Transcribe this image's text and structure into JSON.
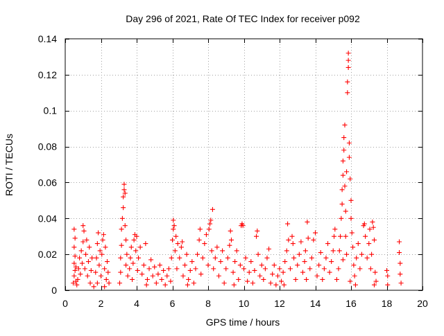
{
  "chart_data": {
    "type": "scatter",
    "title": "Day 296 of 2021, Rate Of TEC Index for receiver p092",
    "xlabel": "GPS time / hours",
    "ylabel": "ROTI / TECUs",
    "xlim": [
      0,
      20
    ],
    "ylim": [
      0,
      0.14
    ],
    "xticks": [
      0,
      2,
      4,
      6,
      8,
      10,
      12,
      14,
      16,
      18,
      20
    ],
    "yticks": [
      0,
      0.02,
      0.04,
      0.06,
      0.08,
      0.1,
      0.12,
      0.14
    ],
    "xtick_labels": [
      "0",
      "2",
      "4",
      "6",
      "8",
      "10",
      "12",
      "14",
      "16",
      "18",
      "20"
    ],
    "ytick_labels": [
      "0",
      "0.02",
      "0.04",
      "0.06",
      "0.08",
      "0.1",
      "0.12",
      "0.14"
    ],
    "grid": true,
    "marker": "+",
    "color": "#ff0000",
    "series": [
      {
        "name": "ROTI",
        "points": [
          [
            0.45,
            0.004
          ],
          [
            0.5,
            0.008
          ],
          [
            0.5,
            0.015
          ],
          [
            0.55,
            0.011
          ],
          [
            0.55,
            0.019
          ],
          [
            0.6,
            0.005
          ],
          [
            0.6,
            0.013
          ],
          [
            0.5,
            0.024
          ],
          [
            0.5,
            0.034
          ],
          [
            0.55,
            0.029
          ],
          [
            0.7,
            0.006
          ],
          [
            0.75,
            0.012
          ],
          [
            0.8,
            0.018
          ],
          [
            0.85,
            0.009
          ],
          [
            0.9,
            0.022
          ],
          [
            0.95,
            0.015
          ],
          [
            1.0,
            0.027
          ],
          [
            1.05,
            0.033
          ],
          [
            1.0,
            0.036
          ],
          [
            1.1,
            0.012
          ],
          [
            1.15,
            0.02
          ],
          [
            1.2,
            0.028
          ],
          [
            1.25,
            0.008
          ],
          [
            1.3,
            0.016
          ],
          [
            1.35,
            0.024
          ],
          [
            1.4,
            0.004
          ],
          [
            1.45,
            0.011
          ],
          [
            1.5,
            0.018
          ],
          [
            0.65,
            0.003
          ],
          [
            1.6,
            0.002
          ],
          [
            1.7,
            0.01
          ],
          [
            1.75,
            0.018
          ],
          [
            1.8,
            0.026
          ],
          [
            1.85,
            0.032
          ],
          [
            1.9,
            0.014
          ],
          [
            1.95,
            0.022
          ],
          [
            2.0,
            0.008
          ],
          [
            2.05,
            0.02
          ],
          [
            2.1,
            0.028
          ],
          [
            2.15,
            0.031
          ],
          [
            2.2,
            0.012
          ],
          [
            2.25,
            0.024
          ],
          [
            2.3,
            0.006
          ],
          [
            2.35,
            0.016
          ],
          [
            2.4,
            0.01
          ],
          [
            2.45,
            0.004
          ],
          [
            1.8,
            0.004
          ],
          [
            2.2,
            0.002
          ],
          [
            3.05,
            0.004
          ],
          [
            3.1,
            0.01
          ],
          [
            3.1,
            0.018
          ],
          [
            3.15,
            0.025
          ],
          [
            3.15,
            0.034
          ],
          [
            3.2,
            0.04
          ],
          [
            3.25,
            0.046
          ],
          [
            3.25,
            0.052
          ],
          [
            3.3,
            0.056
          ],
          [
            3.3,
            0.059
          ],
          [
            3.35,
            0.054
          ],
          [
            3.35,
            0.036
          ],
          [
            3.4,
            0.028
          ],
          [
            3.4,
            0.014
          ],
          [
            3.45,
            0.02
          ],
          [
            3.5,
            0.008
          ],
          [
            3.6,
            0.012
          ],
          [
            3.65,
            0.018
          ],
          [
            3.7,
            0.024
          ],
          [
            3.75,
            0.006
          ],
          [
            3.8,
            0.015
          ],
          [
            3.85,
            0.028
          ],
          [
            3.9,
            0.031
          ],
          [
            3.95,
            0.022
          ],
          [
            4.0,
            0.03
          ],
          [
            4.05,
            0.011
          ],
          [
            4.1,
            0.018
          ],
          [
            4.2,
            0.024
          ],
          [
            4.3,
            0.009
          ],
          [
            4.4,
            0.014
          ],
          [
            4.5,
            0.026
          ],
          [
            4.6,
            0.006
          ],
          [
            4.7,
            0.012
          ],
          [
            4.8,
            0.017
          ],
          [
            4.9,
            0.008
          ],
          [
            5.0,
            0.013
          ],
          [
            5.1,
            0.004
          ],
          [
            5.2,
            0.009
          ],
          [
            5.3,
            0.014
          ],
          [
            5.4,
            0.006
          ],
          [
            5.5,
            0.011
          ],
          [
            5.6,
            0.003
          ],
          [
            5.7,
            0.008
          ],
          [
            5.8,
            0.012
          ],
          [
            5.9,
            0.005
          ],
          [
            5.95,
            0.018
          ],
          [
            6.0,
            0.028
          ],
          [
            6.05,
            0.034
          ],
          [
            6.05,
            0.039
          ],
          [
            6.1,
            0.036
          ],
          [
            6.15,
            0.022
          ],
          [
            6.2,
            0.03
          ],
          [
            6.25,
            0.012
          ],
          [
            6.3,
            0.026
          ],
          [
            6.4,
            0.018
          ],
          [
            6.5,
            0.024
          ],
          [
            6.55,
            0.027
          ],
          [
            6.6,
            0.008
          ],
          [
            6.7,
            0.014
          ],
          [
            6.8,
            0.02
          ],
          [
            6.9,
            0.006
          ],
          [
            7.0,
            0.011
          ],
          [
            7.1,
            0.016
          ],
          [
            7.2,
            0.004
          ],
          [
            7.3,
            0.012
          ],
          [
            7.4,
            0.02
          ],
          [
            7.5,
            0.028
          ],
          [
            7.55,
            0.034
          ],
          [
            7.6,
            0.009
          ],
          [
            7.7,
            0.018
          ],
          [
            7.8,
            0.026
          ],
          [
            7.9,
            0.031
          ],
          [
            8.0,
            0.014
          ],
          [
            8.05,
            0.034
          ],
          [
            8.1,
            0.037
          ],
          [
            8.15,
            0.039
          ],
          [
            8.2,
            0.022
          ],
          [
            8.25,
            0.045
          ],
          [
            8.3,
            0.012
          ],
          [
            8.4,
            0.018
          ],
          [
            8.5,
            0.024
          ],
          [
            8.6,
            0.008
          ],
          [
            8.7,
            0.016
          ],
          [
            8.8,
            0.022
          ],
          [
            8.9,
            0.004
          ],
          [
            9.0,
            0.012
          ],
          [
            9.1,
            0.018
          ],
          [
            9.2,
            0.025
          ],
          [
            9.25,
            0.033
          ],
          [
            9.3,
            0.028
          ],
          [
            9.4,
            0.01
          ],
          [
            9.5,
            0.016
          ],
          [
            9.6,
            0.022
          ],
          [
            9.7,
            0.006
          ],
          [
            9.8,
            0.014
          ],
          [
            9.85,
            0.036
          ],
          [
            9.9,
            0.037
          ],
          [
            9.95,
            0.036
          ],
          [
            10.0,
            0.012
          ],
          [
            10.1,
            0.018
          ],
          [
            10.2,
            0.005
          ],
          [
            10.3,
            0.01
          ],
          [
            10.4,
            0.016
          ],
          [
            10.5,
            0.004
          ],
          [
            10.6,
            0.011
          ],
          [
            10.7,
            0.03
          ],
          [
            10.75,
            0.033
          ],
          [
            10.8,
            0.02
          ],
          [
            10.9,
            0.008
          ],
          [
            11.0,
            0.014
          ],
          [
            11.1,
            0.006
          ],
          [
            11.2,
            0.012
          ],
          [
            11.3,
            0.018
          ],
          [
            11.4,
            0.023
          ],
          [
            11.5,
            0.004
          ],
          [
            11.6,
            0.009
          ],
          [
            11.7,
            0.014
          ],
          [
            11.8,
            0.003
          ],
          [
            11.9,
            0.008
          ],
          [
            12.0,
            0.012
          ],
          [
            12.1,
            0.005
          ],
          [
            12.2,
            0.01
          ],
          [
            12.3,
            0.016
          ],
          [
            12.4,
            0.022
          ],
          [
            12.45,
            0.037
          ],
          [
            12.5,
            0.028
          ],
          [
            12.6,
            0.012
          ],
          [
            12.7,
            0.03
          ],
          [
            12.75,
            0.026
          ],
          [
            12.8,
            0.018
          ],
          [
            12.9,
            0.006
          ],
          [
            13.0,
            0.014
          ],
          [
            13.1,
            0.02
          ],
          [
            13.2,
            0.027
          ],
          [
            13.3,
            0.01
          ],
          [
            13.4,
            0.016
          ],
          [
            13.45,
            0.022
          ],
          [
            13.5,
            0.006
          ],
          [
            13.55,
            0.038
          ],
          [
            13.6,
            0.029
          ],
          [
            13.7,
            0.012
          ],
          [
            13.8,
            0.018
          ],
          [
            13.9,
            0.028
          ],
          [
            14.0,
            0.032
          ],
          [
            14.1,
            0.008
          ],
          [
            14.2,
            0.014
          ],
          [
            14.3,
            0.021
          ],
          [
            14.4,
            0.006
          ],
          [
            14.5,
            0.012
          ],
          [
            14.6,
            0.018
          ],
          [
            14.7,
            0.026
          ],
          [
            14.8,
            0.01
          ],
          [
            14.9,
            0.016
          ],
          [
            15.0,
            0.022
          ],
          [
            15.05,
            0.03
          ],
          [
            15.1,
            0.034
          ],
          [
            15.2,
            0.006
          ],
          [
            15.3,
            0.012
          ],
          [
            15.35,
            0.022
          ],
          [
            15.4,
            0.03
          ],
          [
            15.45,
            0.04
          ],
          [
            15.5,
            0.048
          ],
          [
            15.5,
            0.056
          ],
          [
            15.55,
            0.064
          ],
          [
            15.55,
            0.072
          ],
          [
            15.6,
            0.078
          ],
          [
            15.6,
            0.085
          ],
          [
            15.65,
            0.092
          ],
          [
            15.65,
            0.058
          ],
          [
            15.7,
            0.044
          ],
          [
            15.7,
            0.03
          ],
          [
            15.75,
            0.02
          ],
          [
            15.75,
            0.066
          ],
          [
            15.8,
            0.11
          ],
          [
            15.8,
            0.116
          ],
          [
            15.85,
            0.124
          ],
          [
            15.85,
            0.128
          ],
          [
            15.85,
            0.132
          ],
          [
            15.9,
            0.082
          ],
          [
            15.9,
            0.074
          ],
          [
            15.95,
            0.062
          ],
          [
            16.0,
            0.05
          ],
          [
            16.0,
            0.04
          ],
          [
            16.05,
            0.032
          ],
          [
            16.1,
            0.024
          ],
          [
            16.15,
            0.014
          ],
          [
            16.2,
            0.008
          ],
          [
            16.3,
            0.018
          ],
          [
            16.4,
            0.026
          ],
          [
            16.5,
            0.012
          ],
          [
            16.6,
            0.02
          ],
          [
            16.7,
            0.036
          ],
          [
            16.75,
            0.037
          ],
          [
            16.8,
            0.03
          ],
          [
            16.9,
            0.018
          ],
          [
            17.0,
            0.026
          ],
          [
            17.05,
            0.034
          ],
          [
            17.1,
            0.012
          ],
          [
            17.15,
            0.02
          ],
          [
            17.2,
            0.038
          ],
          [
            17.25,
            0.035
          ],
          [
            17.3,
            0.028
          ],
          [
            17.35,
            0.01
          ],
          [
            17.4,
            0.005
          ],
          [
            17.3,
            0.003
          ],
          [
            18.0,
            0.011
          ],
          [
            18.05,
            0.008
          ],
          [
            18.05,
            0.003
          ],
          [
            18.7,
            0.027
          ],
          [
            18.7,
            0.021
          ],
          [
            18.75,
            0.015
          ],
          [
            18.75,
            0.009
          ],
          [
            18.8,
            0.004
          ],
          [
            15.55,
            0.017
          ],
          [
            15.95,
            0.005
          ],
          [
            16.25,
            0.003
          ],
          [
            12.25,
            0.003
          ],
          [
            9.45,
            0.003
          ],
          [
            6.85,
            0.003
          ],
          [
            4.55,
            0.003
          ]
        ]
      }
    ]
  }
}
